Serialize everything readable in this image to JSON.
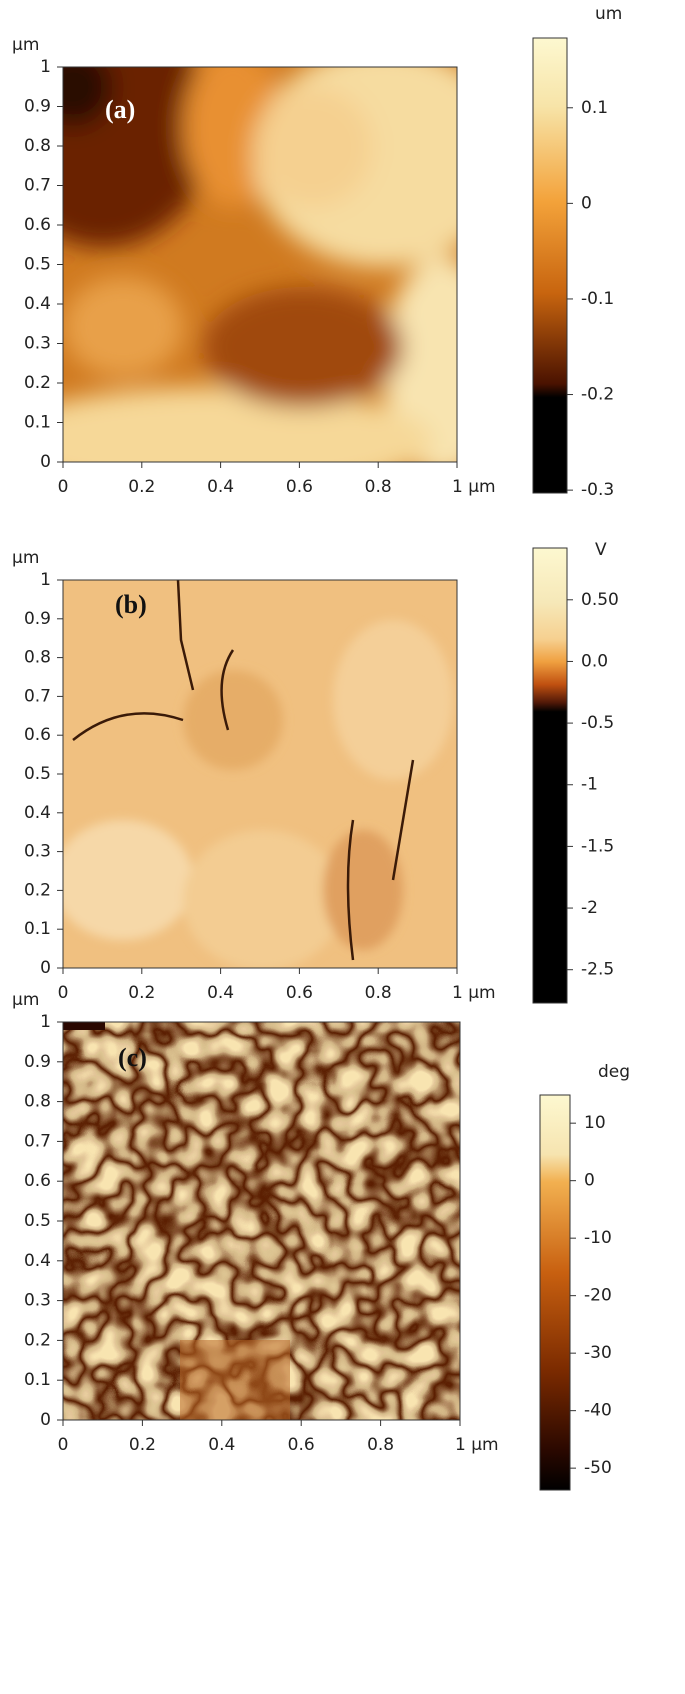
{
  "chart_data": [
    {
      "type": "heatmap",
      "panel_label": "(a)",
      "y_label": "μm",
      "xlim": [
        0,
        1
      ],
      "ylim": [
        0,
        1
      ],
      "xticks": [
        0,
        0.2,
        0.4,
        0.6,
        0.8,
        {
          "value": 1,
          "label": "1 μm"
        }
      ],
      "yticks": [
        0,
        0.1,
        0.2,
        0.3,
        0.4,
        0.5,
        0.6,
        0.7,
        0.8,
        0.9,
        1
      ],
      "colorbar": {
        "label": "um",
        "lim": [
          -0.303,
          0.173
        ],
        "ticks": [
          0.1,
          0,
          -0.1,
          -0.2,
          -0.3
        ]
      }
    },
    {
      "type": "heatmap",
      "panel_label": "(b)",
      "y_label": "μm",
      "xlim": [
        0,
        1
      ],
      "ylim": [
        0,
        1
      ],
      "xticks": [
        0,
        0.2,
        0.4,
        0.6,
        0.8,
        {
          "value": 1,
          "label": "1 μm"
        }
      ],
      "yticks": [
        0,
        0.1,
        0.2,
        0.3,
        0.4,
        0.5,
        0.6,
        0.7,
        0.8,
        0.9,
        1
      ],
      "colorbar": {
        "label": "V",
        "lim": [
          -2.77,
          0.92
        ],
        "ticks": [
          {
            "value": 0.5,
            "label": "0.50"
          },
          {
            "value": 0,
            "label": "0.0"
          },
          -0.5,
          -1,
          -1.5,
          -2,
          -2.5
        ]
      }
    },
    {
      "type": "heatmap",
      "panel_label": "(c)",
      "y_label": "μm",
      "xlim": [
        0,
        1
      ],
      "ylim": [
        0,
        1
      ],
      "xticks": [
        0,
        0.2,
        0.4,
        0.6,
        0.8,
        {
          "value": 1,
          "label": "1 μm"
        }
      ],
      "yticks": [
        0,
        0.1,
        0.2,
        0.3,
        0.4,
        0.5,
        0.6,
        0.7,
        0.8,
        0.9,
        1
      ],
      "colorbar": {
        "label": "deg",
        "lim": [
          -53.8,
          14.9
        ],
        "ticks": [
          10,
          0,
          -10,
          -20,
          -30,
          -40,
          -50
        ]
      }
    }
  ]
}
